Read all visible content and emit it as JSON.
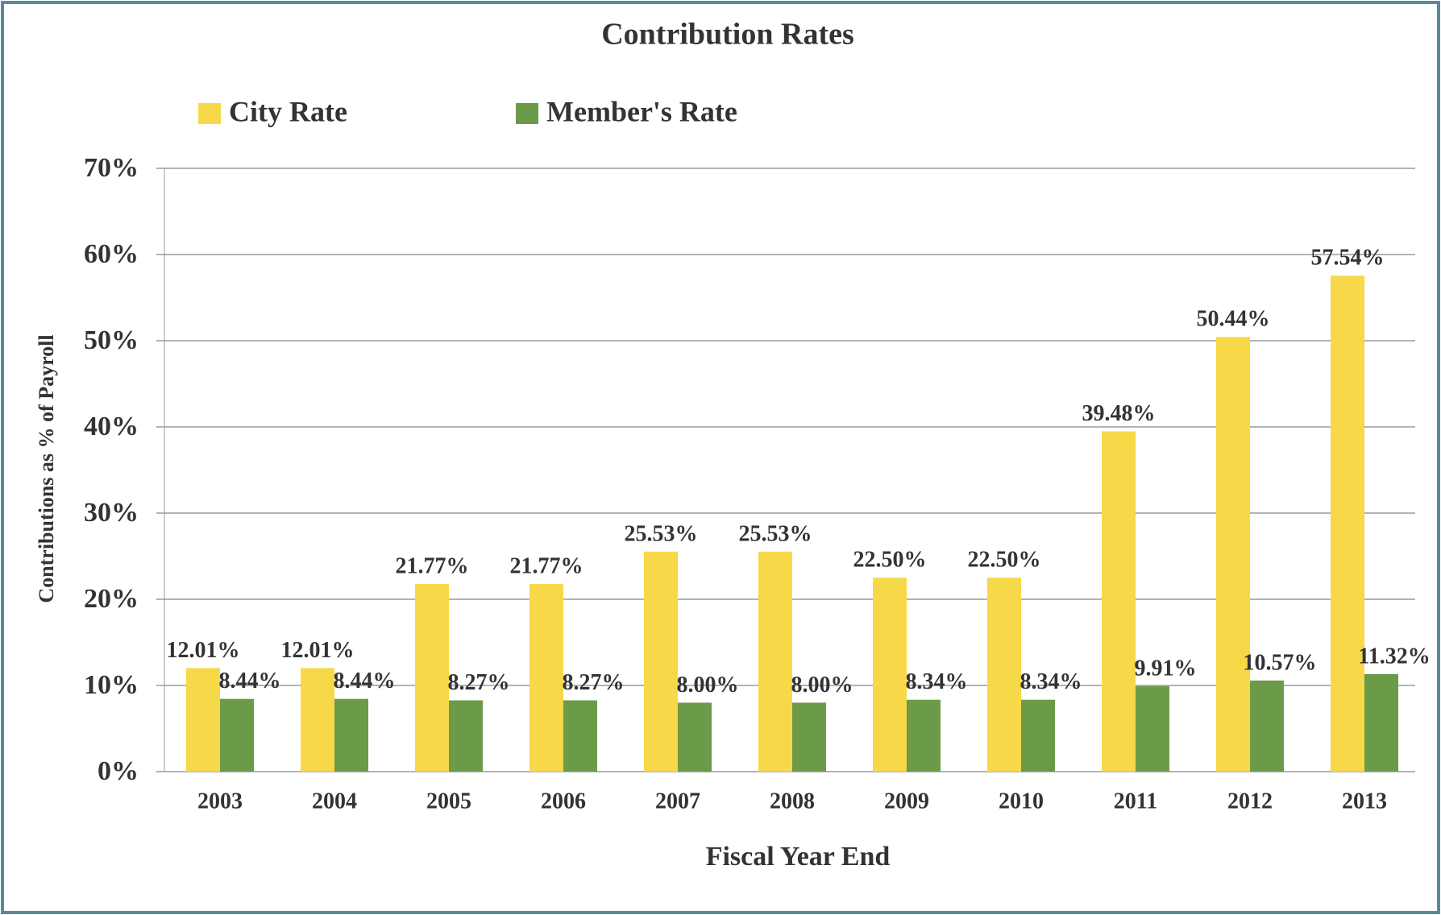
{
  "chart_data": {
    "type": "bar",
    "title": "Contribution Rates",
    "x_label": "Fiscal Year End",
    "y_label": "Contributions as % of Payroll",
    "categories": [
      "2003",
      "2004",
      "2005",
      "2006",
      "2007",
      "2008",
      "2009",
      "2010",
      "2011",
      "2012",
      "2013"
    ],
    "series": [
      {
        "name": "City Rate",
        "color": "#f6d849",
        "values": [
          12.01,
          12.01,
          21.77,
          21.77,
          25.53,
          25.53,
          22.5,
          22.5,
          39.48,
          50.44,
          57.54
        ],
        "value_labels": [
          "12.01%",
          "12.01%",
          "21.77%",
          "21.77%",
          "25.53%",
          "25.53%",
          "22.50%",
          "22.50%",
          "39.48%",
          "50.44%",
          "57.54%"
        ]
      },
      {
        "name": "Member's Rate",
        "color": "#6b9a48",
        "values": [
          8.44,
          8.44,
          8.27,
          8.27,
          8.0,
          8.0,
          8.34,
          8.34,
          9.91,
          10.57,
          11.32
        ],
        "value_labels": [
          "8.44%",
          "8.44%",
          "8.27%",
          "8.27%",
          "8.00%",
          "8.00%",
          "8.34%",
          "8.34%",
          "9.91%",
          "10.57%",
          "11.32%"
        ]
      }
    ],
    "ylim": [
      0,
      70
    ],
    "yticks": [
      {
        "value": 0,
        "label": "0%"
      },
      {
        "value": 10,
        "label": "10%"
      },
      {
        "value": 20,
        "label": "20%"
      },
      {
        "value": 30,
        "label": "30%"
      },
      {
        "value": 40,
        "label": "40%"
      },
      {
        "value": 50,
        "label": "50%"
      },
      {
        "value": 60,
        "label": "60%"
      },
      {
        "value": 70,
        "label": "70%"
      }
    ],
    "grid": true,
    "legend": "top-left"
  }
}
